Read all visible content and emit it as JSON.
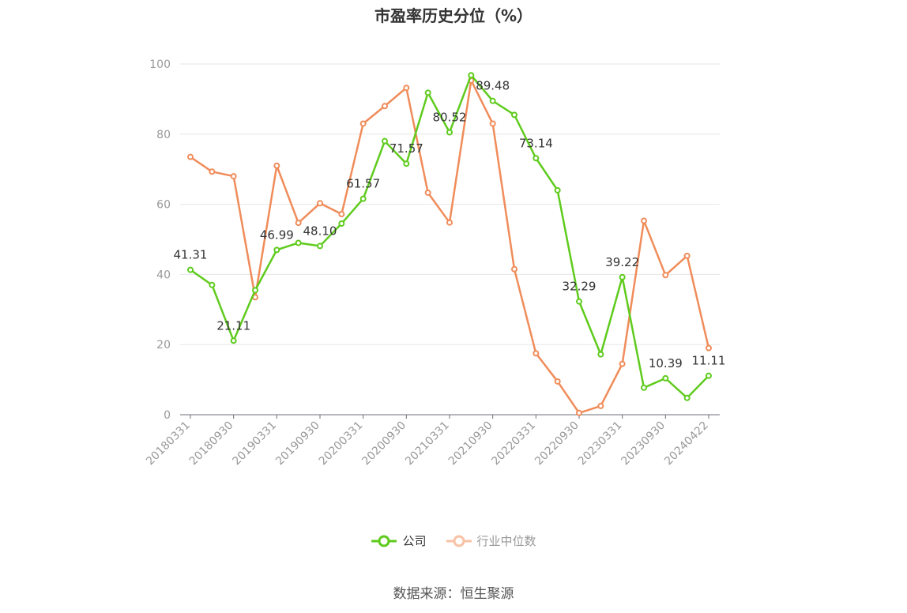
{
  "chart_data": {
    "type": "line",
    "title": "市盈率历史分位（%）",
    "xlabel": "",
    "ylabel": "",
    "ylim": [
      0,
      100
    ],
    "yticks": [
      0,
      20,
      40,
      60,
      80,
      100
    ],
    "grid": true,
    "legend_position": "bottom",
    "x": [
      "20180331",
      "20180630",
      "20180930",
      "20181231",
      "20190331",
      "20190630",
      "20190930",
      "20191231",
      "20200331",
      "20200630",
      "20200930",
      "20201231",
      "20210331",
      "20210630",
      "20210930",
      "20211231",
      "20220331",
      "20220630",
      "20220930",
      "20221231",
      "20230331",
      "20230630",
      "20230930",
      "20231231",
      "20240422"
    ],
    "x_tick_labels": [
      "20180331",
      "20180930",
      "20190331",
      "20190930",
      "20200331",
      "20200930",
      "20210331",
      "20210930",
      "20220331",
      "20220930",
      "20230331",
      "20230930",
      "20240422"
    ],
    "series": [
      {
        "name": "公司",
        "color": "#5fcb1d",
        "values": [
          41.31,
          37.0,
          21.11,
          35.5,
          46.99,
          49.0,
          48.1,
          54.5,
          61.57,
          78.0,
          71.57,
          91.8,
          80.52,
          96.8,
          89.48,
          85.5,
          73.14,
          64.0,
          32.29,
          17.2,
          39.22,
          7.7,
          10.39,
          4.8,
          11.11
        ],
        "labels": [
          "41.31",
          null,
          "21.11",
          null,
          "46.99",
          null,
          "48.10",
          null,
          "61.57",
          null,
          "71.57",
          null,
          "80.52",
          null,
          "89.48",
          null,
          "73.14",
          null,
          "32.29",
          null,
          "39.22",
          null,
          "10.39",
          null,
          "11.11"
        ]
      },
      {
        "name": "行业中位数",
        "color": "#f08c5a",
        "values": [
          73.5,
          69.3,
          68.0,
          33.5,
          71.0,
          54.7,
          60.3,
          57.2,
          83.0,
          88.0,
          93.2,
          63.3,
          54.8,
          95.3,
          83.0,
          41.5,
          17.5,
          9.5,
          0.5,
          2.5,
          14.5,
          55.3,
          39.8,
          45.3,
          19.0
        ]
      }
    ]
  },
  "source_text": "数据来源：恒生聚源"
}
